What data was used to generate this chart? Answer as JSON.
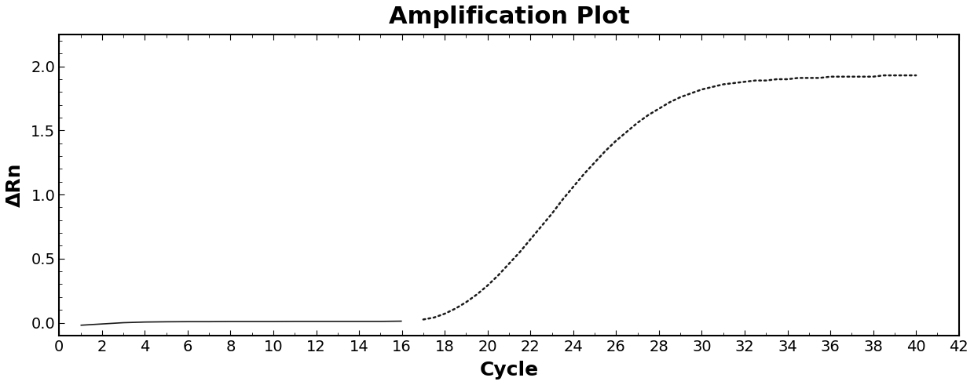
{
  "title": "Amplification Plot",
  "xlabel": "Cycle",
  "ylabel": "ΔRn",
  "xlim": [
    0,
    42
  ],
  "ylim": [
    -0.1,
    2.25
  ],
  "xticks": [
    0,
    2,
    4,
    6,
    8,
    10,
    12,
    14,
    16,
    18,
    20,
    22,
    24,
    26,
    28,
    30,
    32,
    34,
    36,
    38,
    40,
    42
  ],
  "yticks": [
    0.0,
    0.5,
    1.0,
    1.5,
    2.0
  ],
  "background_color": "#ffffff",
  "line_color": "#1a1a1a",
  "title_fontsize": 22,
  "label_fontsize": 18,
  "tick_fontsize": 14,
  "x_data": [
    1,
    2,
    3,
    4,
    5,
    6,
    7,
    8,
    9,
    10,
    11,
    12,
    13,
    14,
    15,
    16,
    17,
    17.5,
    18,
    18.5,
    19,
    19.5,
    20,
    20.5,
    21,
    21.5,
    22,
    22.5,
    23,
    23.5,
    24,
    24.5,
    25,
    25.5,
    26,
    26.5,
    27,
    27.5,
    28,
    28.5,
    29,
    29.5,
    30,
    30.5,
    31,
    31.5,
    32,
    32.5,
    33,
    33.5,
    34,
    34.5,
    35,
    35.5,
    36,
    36.5,
    37,
    37.5,
    38,
    38.5,
    39,
    39.5,
    40
  ],
  "y_data": [
    -0.02,
    -0.01,
    0.0,
    0.005,
    0.007,
    0.008,
    0.008,
    0.009,
    0.009,
    0.009,
    0.01,
    0.01,
    0.01,
    0.01,
    0.01,
    0.012,
    0.025,
    0.04,
    0.07,
    0.11,
    0.16,
    0.22,
    0.29,
    0.37,
    0.46,
    0.55,
    0.65,
    0.75,
    0.85,
    0.96,
    1.06,
    1.16,
    1.25,
    1.34,
    1.42,
    1.49,
    1.56,
    1.62,
    1.67,
    1.72,
    1.76,
    1.79,
    1.82,
    1.84,
    1.86,
    1.87,
    1.88,
    1.89,
    1.89,
    1.9,
    1.9,
    1.91,
    1.91,
    1.91,
    1.92,
    1.92,
    1.92,
    1.92,
    1.92,
    1.93,
    1.93,
    1.93,
    1.93
  ],
  "flat_x_end": 16.5,
  "dotted_x_start": 16.8
}
